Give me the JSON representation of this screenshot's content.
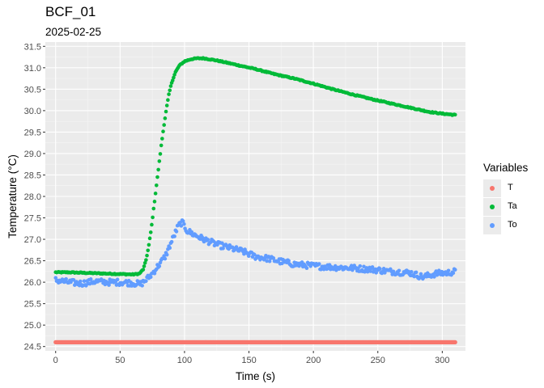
{
  "chart_data": {
    "type": "scatter",
    "title": "BCF_01",
    "subtitle": "2025-02-25",
    "xlabel": "Time (s)",
    "ylabel": "Temperature (°C)",
    "xlim": [
      -8,
      318
    ],
    "ylim": [
      24.4,
      31.6
    ],
    "xticks": [
      0,
      50,
      100,
      150,
      200,
      250,
      300
    ],
    "yticks": [
      24.5,
      25.0,
      25.5,
      26.0,
      26.5,
      27.0,
      27.5,
      28.0,
      28.5,
      29.0,
      29.5,
      30.0,
      30.5,
      31.0,
      31.5
    ],
    "grid": true,
    "legend": {
      "title": "Variables",
      "position": "right"
    },
    "series": [
      {
        "name": "T",
        "color": "#f8766d",
        "x_range": [
          0,
          310
        ],
        "value": 24.6,
        "points": [
          [
            0,
            24.6
          ],
          [
            50,
            24.6
          ],
          [
            100,
            24.6
          ],
          [
            150,
            24.6
          ],
          [
            200,
            24.6
          ],
          [
            250,
            24.6
          ],
          [
            310,
            24.6
          ]
        ]
      },
      {
        "name": "Ta",
        "color": "#00ba38",
        "points": [
          [
            0,
            26.23
          ],
          [
            10,
            26.23
          ],
          [
            20,
            26.22
          ],
          [
            30,
            26.21
          ],
          [
            40,
            26.2
          ],
          [
            50,
            26.19
          ],
          [
            60,
            26.18
          ],
          [
            65,
            26.2
          ],
          [
            68,
            26.3
          ],
          [
            70,
            26.5
          ],
          [
            72,
            26.8
          ],
          [
            74,
            27.2
          ],
          [
            76,
            27.7
          ],
          [
            78,
            28.2
          ],
          [
            80,
            28.7
          ],
          [
            82,
            29.2
          ],
          [
            84,
            29.65
          ],
          [
            86,
            30.05
          ],
          [
            88,
            30.4
          ],
          [
            90,
            30.65
          ],
          [
            93,
            30.9
          ],
          [
            96,
            31.05
          ],
          [
            100,
            31.15
          ],
          [
            105,
            31.2
          ],
          [
            110,
            31.22
          ],
          [
            115,
            31.22
          ],
          [
            125,
            31.17
          ],
          [
            140,
            31.07
          ],
          [
            155,
            30.97
          ],
          [
            170,
            30.85
          ],
          [
            185,
            30.75
          ],
          [
            200,
            30.63
          ],
          [
            215,
            30.5
          ],
          [
            230,
            30.38
          ],
          [
            245,
            30.27
          ],
          [
            260,
            30.17
          ],
          [
            275,
            30.07
          ],
          [
            290,
            29.97
          ],
          [
            300,
            29.93
          ],
          [
            310,
            29.9
          ]
        ]
      },
      {
        "name": "To",
        "color": "#619cff",
        "points": [
          [
            0,
            26.05
          ],
          [
            10,
            26.0
          ],
          [
            20,
            25.97
          ],
          [
            30,
            26.02
          ],
          [
            40,
            26.0
          ],
          [
            50,
            26.0
          ],
          [
            60,
            25.98
          ],
          [
            66,
            25.95
          ],
          [
            70,
            26.05
          ],
          [
            75,
            26.2
          ],
          [
            80,
            26.4
          ],
          [
            85,
            26.6
          ],
          [
            90,
            26.95
          ],
          [
            95,
            27.3
          ],
          [
            98,
            27.4
          ],
          [
            102,
            27.2
          ],
          [
            108,
            27.1
          ],
          [
            115,
            27.0
          ],
          [
            125,
            26.88
          ],
          [
            135,
            26.8
          ],
          [
            145,
            26.72
          ],
          [
            155,
            26.6
          ],
          [
            165,
            26.55
          ],
          [
            175,
            26.48
          ],
          [
            185,
            26.42
          ],
          [
            200,
            26.38
          ],
          [
            215,
            26.35
          ],
          [
            230,
            26.33
          ],
          [
            245,
            26.3
          ],
          [
            260,
            26.25
          ],
          [
            275,
            26.22
          ],
          [
            285,
            26.12
          ],
          [
            295,
            26.2
          ],
          [
            305,
            26.22
          ],
          [
            310,
            26.25
          ]
        ]
      }
    ]
  }
}
